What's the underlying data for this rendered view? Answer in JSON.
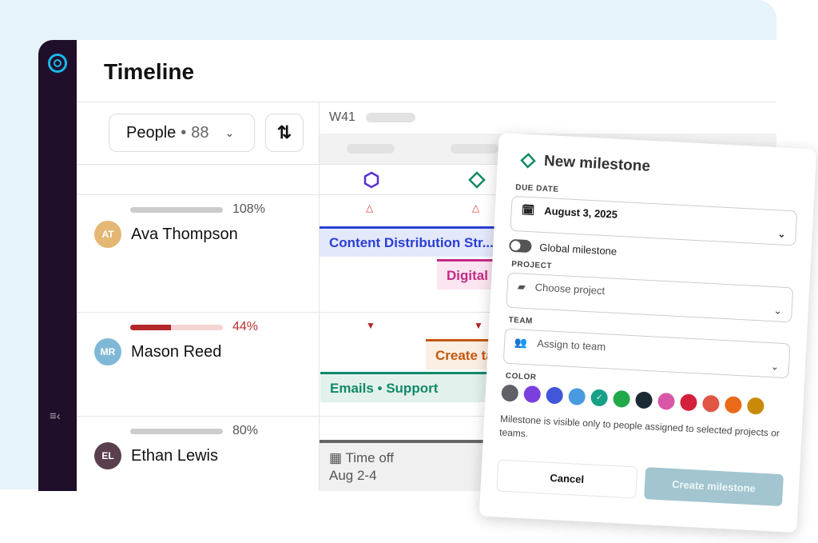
{
  "app": {
    "title": "Timeline",
    "filter_label": "People",
    "filter_separator": "•",
    "filter_count": "88",
    "week_label": "W41",
    "sort_icon": "⇅",
    "collapse_icon": "≡‹"
  },
  "milestone_icons": [
    {
      "shape": "hexagon",
      "color": "#5b2fd6"
    },
    {
      "shape": "diamond",
      "color": "#128a6a"
    }
  ],
  "people": [
    {
      "name": "Ava Thompson",
      "utilization": "108%",
      "util_value": 108,
      "over": false,
      "avatar_color": "#e5b774",
      "initials": "AT"
    },
    {
      "name": "Mason Reed",
      "utilization": "44%",
      "util_value": 44,
      "over": true,
      "avatar_color": "#7fb8d6",
      "initials": "MR"
    },
    {
      "name": "Ethan Lewis",
      "utilization": "80%",
      "util_value": 80,
      "over": false,
      "avatar_color": "#5a3f4e",
      "initials": "EL"
    }
  ],
  "tasks": {
    "content": "Content Distribution Str... • W",
    "digital": "Digital Ad",
    "create": "Create ta",
    "emails": "Emails • Support",
    "timeoff_title": "Time off",
    "timeoff_dates": "Aug 2-4"
  },
  "colors": {
    "content": "#2a3fd4",
    "digital": "#c42a86",
    "create": "#c4570f",
    "emails": "#128a6a",
    "timeoff": "#666666"
  },
  "dialog": {
    "title": "New milestone",
    "due_date_label": "DUE DATE",
    "due_date_value": "August 3, 2025",
    "global_label": "Global milestone",
    "global_on": false,
    "project_label": "PROJECT",
    "project_placeholder": "Choose project",
    "team_label": "TEAM",
    "team_placeholder": "Assign to team",
    "color_label": "COLOR",
    "swatches": [
      "#5f6068",
      "#7b3fe0",
      "#4256d9",
      "#4a9ae0",
      "#17a086",
      "#20a84a",
      "#1b2b34",
      "#d957a8",
      "#d3213c",
      "#e05544",
      "#ea6a17",
      "#c98a0a"
    ],
    "selected_swatch": 4,
    "note": "Milestone is visible only to people assigned to selected projects or teams.",
    "cancel": "Cancel",
    "create": "Create milestone"
  }
}
